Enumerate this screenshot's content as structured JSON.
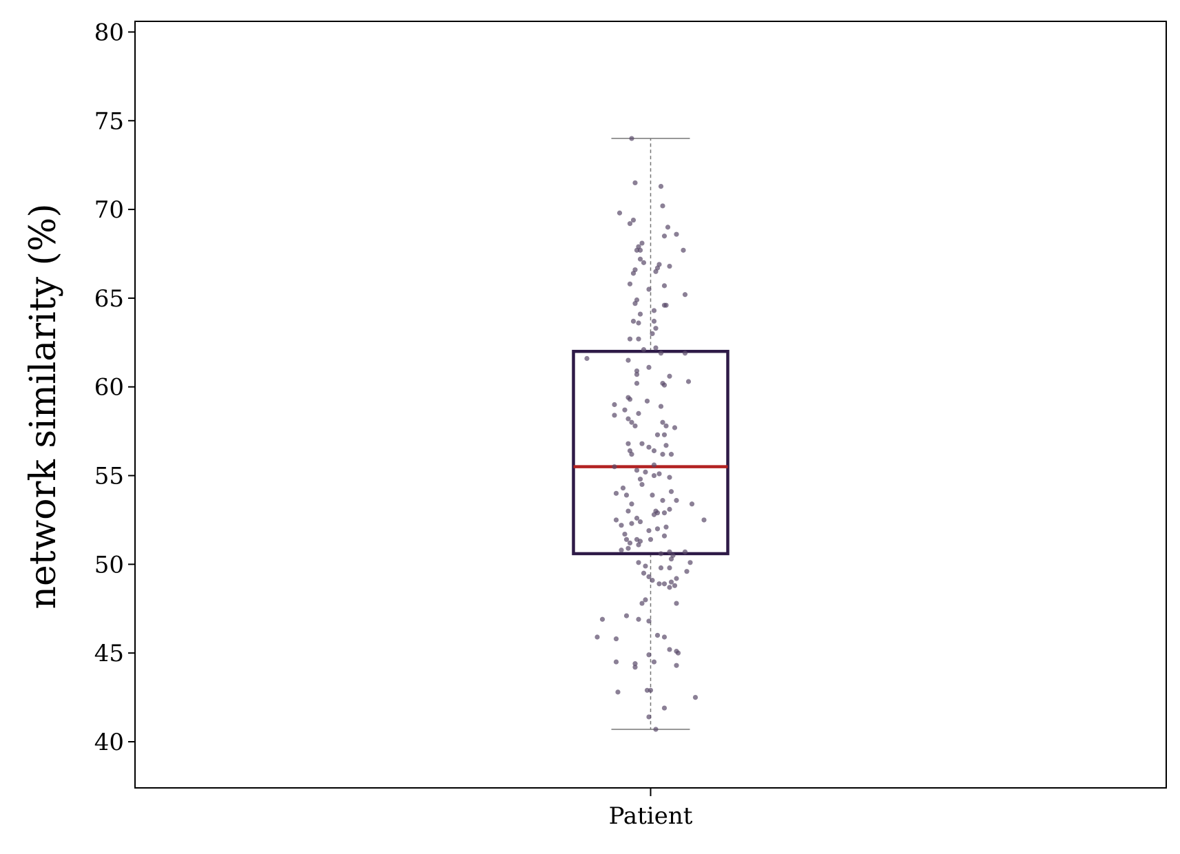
{
  "chart_data": {
    "type": "box",
    "categories": [
      "Patient"
    ],
    "xlabel": "",
    "ylabel": "network similarity (%)",
    "ylim": [
      37.4,
      80.6
    ],
    "yticks": [
      40,
      45,
      50,
      55,
      60,
      65,
      70,
      75,
      80
    ],
    "grid": false,
    "legend": "none",
    "box": {
      "whisker_low": 40.7,
      "q1": 50.6,
      "median": 55.5,
      "q3": 62.0,
      "whisker_high": 74.0
    },
    "points": [
      [
        -0.11,
        74.0
      ],
      [
        -0.09,
        71.5
      ],
      [
        0.06,
        71.3
      ],
      [
        -0.18,
        69.8
      ],
      [
        -0.1,
        69.4
      ],
      [
        -0.12,
        69.2
      ],
      [
        0.07,
        70.2
      ],
      [
        0.1,
        69.0
      ],
      [
        0.15,
        68.6
      ],
      [
        0.08,
        68.5
      ],
      [
        -0.05,
        68.1
      ],
      [
        -0.07,
        67.9
      ],
      [
        -0.06,
        67.7
      ],
      [
        -0.08,
        67.7
      ],
      [
        0.19,
        67.7
      ],
      [
        -0.06,
        67.2
      ],
      [
        -0.04,
        67.0
      ],
      [
        0.05,
        66.9
      ],
      [
        0.11,
        66.8
      ],
      [
        0.04,
        66.7
      ],
      [
        -0.09,
        66.6
      ],
      [
        0.03,
        66.5
      ],
      [
        -0.1,
        66.4
      ],
      [
        -0.12,
        65.8
      ],
      [
        0.08,
        65.7
      ],
      [
        -0.01,
        65.5
      ],
      [
        0.2,
        65.2
      ],
      [
        -0.08,
        64.9
      ],
      [
        -0.09,
        64.7
      ],
      [
        0.08,
        64.6
      ],
      [
        0.09,
        64.6
      ],
      [
        0.02,
        64.3
      ],
      [
        -0.06,
        64.1
      ],
      [
        -0.1,
        63.7
      ],
      [
        -0.07,
        63.6
      ],
      [
        0.02,
        63.7
      ],
      [
        0.03,
        63.3
      ],
      [
        0.01,
        63.0
      ],
      [
        -0.12,
        62.7
      ],
      [
        -0.07,
        62.7
      ],
      [
        0.03,
        62.2
      ],
      [
        -0.04,
        62.1
      ],
      [
        0.06,
        61.9
      ],
      [
        0.2,
        61.9
      ],
      [
        -0.37,
        61.6
      ],
      [
        -0.13,
        61.5
      ],
      [
        -0.01,
        61.1
      ],
      [
        -0.08,
        60.9
      ],
      [
        -0.08,
        60.7
      ],
      [
        0.11,
        60.6
      ],
      [
        0.22,
        60.3
      ],
      [
        -0.08,
        60.2
      ],
      [
        0.07,
        60.2
      ],
      [
        0.08,
        60.1
      ],
      [
        -0.13,
        59.4
      ],
      [
        -0.12,
        59.3
      ],
      [
        -0.02,
        59.2
      ],
      [
        0.06,
        58.9
      ],
      [
        -0.21,
        59.0
      ],
      [
        -0.15,
        58.7
      ],
      [
        -0.07,
        58.5
      ],
      [
        -0.21,
        58.4
      ],
      [
        -0.13,
        58.2
      ],
      [
        -0.11,
        58.0
      ],
      [
        0.07,
        58.0
      ],
      [
        -0.09,
        57.8
      ],
      [
        0.09,
        57.8
      ],
      [
        0.14,
        57.7
      ],
      [
        0.08,
        57.3
      ],
      [
        0.04,
        57.3
      ],
      [
        -0.05,
        56.8
      ],
      [
        -0.13,
        56.8
      ],
      [
        -0.01,
        56.6
      ],
      [
        0.09,
        56.7
      ],
      [
        0.02,
        56.4
      ],
      [
        -0.12,
        56.4
      ],
      [
        -0.11,
        56.2
      ],
      [
        0.07,
        56.2
      ],
      [
        0.12,
        56.2
      ],
      [
        -0.21,
        55.5
      ],
      [
        0.02,
        55.6
      ],
      [
        -0.08,
        55.3
      ],
      [
        -0.03,
        55.2
      ],
      [
        0.05,
        55.1
      ],
      [
        0.02,
        55.0
      ],
      [
        0.11,
        54.9
      ],
      [
        -0.06,
        54.8
      ],
      [
        -0.05,
        54.5
      ],
      [
        -0.16,
        54.3
      ],
      [
        0.12,
        54.1
      ],
      [
        -0.2,
        54.0
      ],
      [
        -0.14,
        53.9
      ],
      [
        0.01,
        53.9
      ],
      [
        0.07,
        53.6
      ],
      [
        0.15,
        53.6
      ],
      [
        -0.11,
        53.4
      ],
      [
        0.24,
        53.4
      ],
      [
        0.11,
        53.1
      ],
      [
        -0.13,
        53.0
      ],
      [
        0.03,
        53.0
      ],
      [
        0.04,
        52.9
      ],
      [
        0.08,
        52.9
      ],
      [
        0.02,
        52.8
      ],
      [
        -0.08,
        52.6
      ],
      [
        -0.2,
        52.5
      ],
      [
        -0.06,
        52.4
      ],
      [
        0.31,
        52.5
      ],
      [
        -0.11,
        52.3
      ],
      [
        -0.17,
        52.2
      ],
      [
        0.04,
        52.0
      ],
      [
        0.09,
        52.1
      ],
      [
        -0.01,
        51.9
      ],
      [
        -0.15,
        51.7
      ],
      [
        -0.14,
        51.4
      ],
      [
        -0.08,
        51.4
      ],
      [
        0.0,
        51.4
      ],
      [
        -0.06,
        51.3
      ],
      [
        -0.12,
        51.2
      ],
      [
        0.08,
        51.6
      ],
      [
        -0.07,
        51.1
      ],
      [
        -0.13,
        50.9
      ],
      [
        0.11,
        50.7
      ],
      [
        0.2,
        50.7
      ],
      [
        -0.17,
        50.8
      ],
      [
        0.06,
        50.6
      ],
      [
        0.13,
        50.5
      ],
      [
        -0.07,
        50.1
      ],
      [
        0.12,
        50.3
      ],
      [
        0.23,
        50.1
      ],
      [
        -0.03,
        49.9
      ],
      [
        0.06,
        49.8
      ],
      [
        0.11,
        49.8
      ],
      [
        0.21,
        49.6
      ],
      [
        -0.04,
        49.5
      ],
      [
        -0.01,
        49.3
      ],
      [
        0.01,
        49.1
      ],
      [
        0.15,
        49.2
      ],
      [
        0.12,
        49.0
      ],
      [
        0.08,
        48.9
      ],
      [
        0.05,
        48.9
      ],
      [
        0.11,
        48.7
      ],
      [
        0.14,
        48.8
      ],
      [
        -0.03,
        48.0
      ],
      [
        -0.05,
        47.8
      ],
      [
        0.15,
        47.8
      ],
      [
        -0.28,
        46.9
      ],
      [
        -0.14,
        47.1
      ],
      [
        -0.07,
        46.9
      ],
      [
        -0.01,
        46.8
      ],
      [
        0.04,
        46.0
      ],
      [
        0.08,
        45.9
      ],
      [
        -0.31,
        45.9
      ],
      [
        -0.2,
        45.8
      ],
      [
        0.11,
        45.2
      ],
      [
        0.16,
        45.0
      ],
      [
        0.15,
        45.1
      ],
      [
        -0.01,
        44.9
      ],
      [
        -0.2,
        44.5
      ],
      [
        0.02,
        44.5
      ],
      [
        -0.09,
        44.4
      ],
      [
        -0.09,
        44.2
      ],
      [
        0.15,
        44.3
      ],
      [
        -0.02,
        42.9
      ],
      [
        0.0,
        42.9
      ],
      [
        -0.19,
        42.8
      ],
      [
        0.26,
        42.5
      ],
      [
        0.08,
        41.9
      ],
      [
        -0.01,
        41.4
      ],
      [
        0.03,
        40.7
      ]
    ]
  },
  "colors": {
    "box": "#2e1a47",
    "median": "#b22222",
    "whisker": "#777777",
    "points": "#5a4a6a",
    "axes": "#000000"
  }
}
